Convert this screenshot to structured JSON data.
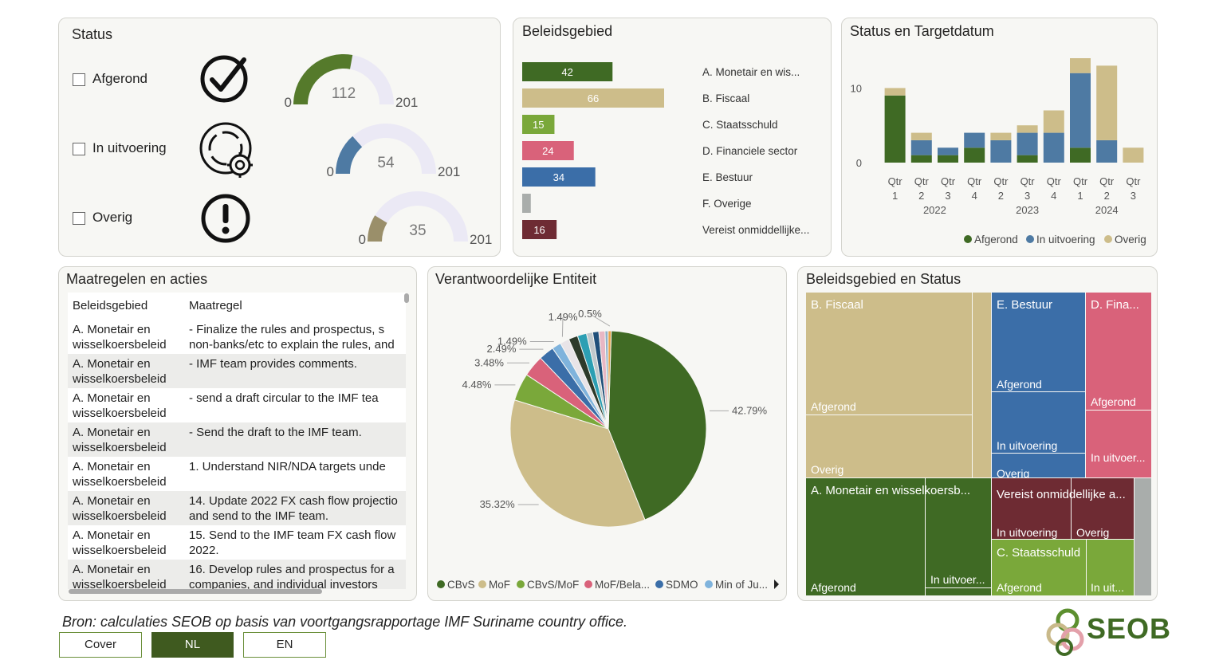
{
  "status_panel": {
    "title": "Status",
    "items": [
      {
        "label": "Afgerond",
        "icon": "check-circle-icon",
        "min": "0",
        "value": "112",
        "max": "201",
        "fraction": 0.557,
        "color": "#557a2b"
      },
      {
        "label": "In uitvoering",
        "icon": "gear-cycle-icon",
        "min": "0",
        "value": "54",
        "max": "201",
        "fraction": 0.269,
        "color": "#4e7aa3"
      },
      {
        "label": "Overig",
        "icon": "exclamation-circle-icon",
        "min": "0",
        "value": "35",
        "max": "201",
        "fraction": 0.174,
        "color": "#9a8f6a"
      }
    ]
  },
  "beleid_panel": {
    "title": "Beleidsgebied",
    "bars": [
      {
        "value": "42",
        "num": 42,
        "label": "A.   Monetair en wis...",
        "color": "#3f6a24"
      },
      {
        "value": "66",
        "num": 66,
        "label": "B.   Fiscaal",
        "color": "#cdbd8a"
      },
      {
        "value": "15",
        "num": 15,
        "label": "C.   Staatsschuld",
        "color": "#7aa83a"
      },
      {
        "value": "24",
        "num": 24,
        "label": "D.   Financiele sector",
        "color": "#d9627a"
      },
      {
        "value": "34",
        "num": 34,
        "label": "E.   Bestuur",
        "color": "#3b6ea8"
      },
      {
        "value": "",
        "num": 4,
        "label": "F.   Overige",
        "color": "#a9adab"
      },
      {
        "value": "16",
        "num": 16,
        "label": "Vereist onmiddellijke...",
        "color": "#6e2b33"
      }
    ]
  },
  "target_panel": {
    "title": "Status en Targetdatum",
    "y_ticks": [
      "10",
      "0"
    ],
    "quarters": [
      {
        "q": "Qtr",
        "n": "1"
      },
      {
        "q": "Qtr",
        "n": "2"
      },
      {
        "q": "Qtr",
        "n": "3"
      },
      {
        "q": "Qtr",
        "n": "4"
      },
      {
        "q": "Qtr",
        "n": "2"
      },
      {
        "q": "Qtr",
        "n": "3"
      },
      {
        "q": "Qtr",
        "n": "4"
      },
      {
        "q": "Qtr",
        "n": "1"
      },
      {
        "q": "Qtr",
        "n": "2"
      },
      {
        "q": "Qtr",
        "n": "3"
      }
    ],
    "years": [
      "2022",
      "2023",
      "2024"
    ],
    "legend": [
      {
        "name": "Afgerond",
        "color": "#3f6a24"
      },
      {
        "name": "In uitvoering",
        "color": "#4e7aa3"
      },
      {
        "name": "Overig",
        "color": "#cdbd8a"
      }
    ]
  },
  "chart_data": {
    "type": "bar",
    "stacked": true,
    "categories": [
      "2022 Qtr 1",
      "2022 Qtr 2",
      "2022 Qtr 3",
      "2022 Qtr 4",
      "2023 Qtr 2",
      "2023 Qtr 3",
      "2023 Qtr 4",
      "2024 Qtr 1",
      "2024 Qtr 2",
      "2024 Qtr 3"
    ],
    "series": [
      {
        "name": "Afgerond",
        "values": [
          9,
          1,
          1,
          2,
          0,
          1,
          0,
          2,
          0,
          0
        ]
      },
      {
        "name": "In uitvoering",
        "values": [
          0,
          2,
          1,
          2,
          3,
          3,
          4,
          10,
          3,
          0
        ]
      },
      {
        "name": "Overig",
        "values": [
          1,
          1,
          0,
          0,
          1,
          1,
          3,
          2,
          10,
          2
        ]
      }
    ],
    "ylim": [
      0,
      14
    ]
  },
  "pie_data": {
    "type": "pie",
    "slices": [
      {
        "label": "CBvS",
        "value": 42.79,
        "text": "42.79%",
        "color": "#3f6a24"
      },
      {
        "label": "MoF",
        "value": 35.32,
        "text": "35.32%",
        "color": "#cdbd8a"
      },
      {
        "label": "CBvS/MoF",
        "value": 4.48,
        "text": "4.48%",
        "color": "#7aa83a"
      },
      {
        "label": "MoF/Bela...",
        "value": 3.48,
        "text": "3.48%",
        "color": "#d9627a"
      },
      {
        "label": "SDMO",
        "value": 2.49,
        "text": "2.49%",
        "color": "#3b6ea8"
      },
      {
        "label": "Min of Ju...",
        "value": 1.49,
        "text": "1.49%",
        "color": "#7fb3dc"
      },
      {
        "label": "",
        "value": 1.49,
        "text": "1.49%",
        "color": "#e8e4e8"
      },
      {
        "label": "",
        "value": 1.49,
        "text": "",
        "color": "#2d3a2a"
      },
      {
        "label": "",
        "value": 1.49,
        "text": "",
        "color": "#2c9fb3"
      },
      {
        "label": "",
        "value": 1.0,
        "text": "",
        "color": "#c0c8cc"
      },
      {
        "label": "",
        "value": 1.0,
        "text": "",
        "color": "#1f4f7a"
      },
      {
        "label": "",
        "value": 1.0,
        "text": "",
        "color": "#e8b7c4"
      },
      {
        "label": "",
        "value": 0.5,
        "text": "",
        "color": "#8fb0c8"
      },
      {
        "label": "",
        "value": 0.5,
        "text": "0.5%",
        "color": "#e9a24a"
      }
    ]
  },
  "pie_panel": {
    "title": "Verantwoordelijke Entiteit"
  },
  "table_panel": {
    "title": "Maatregelen en acties",
    "headers": [
      "Beleidsgebied",
      "Maatregel"
    ],
    "rows": [
      {
        "a1": "A.   Monetair en",
        "a2": "wisselkoersbeleid",
        "b1": "-      Finalize the rules and prospectus, s",
        "b2": "non-banks/etc to explain the rules, and"
      },
      {
        "a1": "A.   Monetair en",
        "a2": "wisselkoersbeleid",
        "b1": "-      IMF team provides comments.",
        "b2": ""
      },
      {
        "a1": "A.   Monetair en",
        "a2": "wisselkoersbeleid",
        "b1": "-      send a draft circular to the IMF tea",
        "b2": ""
      },
      {
        "a1": "A.   Monetair en",
        "a2": "wisselkoersbeleid",
        "b1": "-      Send the draft to the IMF team.",
        "b2": ""
      },
      {
        "a1": "A.   Monetair en",
        "a2": "wisselkoersbeleid",
        "b1": "1.    Understand NIR/NDA targets unde",
        "b2": ""
      },
      {
        "a1": "A.   Monetair en",
        "a2": "wisselkoersbeleid",
        "b1": "14.  Update 2022 FX cash flow projectio",
        "b2": "and send to the IMF team."
      },
      {
        "a1": "A.   Monetair en",
        "a2": "wisselkoersbeleid",
        "b1": "15.  Send to the IMF team FX cash flow",
        "b2": "2022."
      },
      {
        "a1": "A.   Monetair en",
        "a2": "wisselkoersbeleid",
        "b1": "16.  Develop rules and prospectus for a",
        "b2": "companies, and individual investors"
      }
    ]
  },
  "treemap_panel": {
    "title": "Beleidsgebied en Status",
    "labels": {
      "fiscaal": "B.   Fiscaal",
      "fiscaal_afgerond": "Afgerond",
      "fiscaal_overig": "Overig",
      "bestuur": "E.   Bestuur",
      "bestuur_afgerond": "Afgerond",
      "bestuur_uitv": "In uitvoering",
      "bestuur_overig": "Overig",
      "fina": "D.   Fina...",
      "fina_afgerond": "Afgerond",
      "fina_uitv": "In uitvoer...",
      "monetair": "A.   Monetair en wisselkoersb...",
      "monetair_afgerond": "Afgerond",
      "monetair_uitv": "In uitvoer...",
      "vereist": "Vereist onmiddellijke a...",
      "vereist_uitv": "In uitvoering",
      "vereist_overig": "Overig",
      "staats": "C.   Staatsschuld",
      "staats_afgerond": "Afgerond",
      "staats_uitv": "In uit..."
    }
  },
  "footer": {
    "source": "Bron: calculaties SEOB op basis van voortgangsrapportage IMF Suriname country office.",
    "buttons": [
      {
        "label": "Cover",
        "active": false
      },
      {
        "label": "NL",
        "active": true
      },
      {
        "label": "EN",
        "active": false
      }
    ],
    "logo_text": "SEOB"
  }
}
